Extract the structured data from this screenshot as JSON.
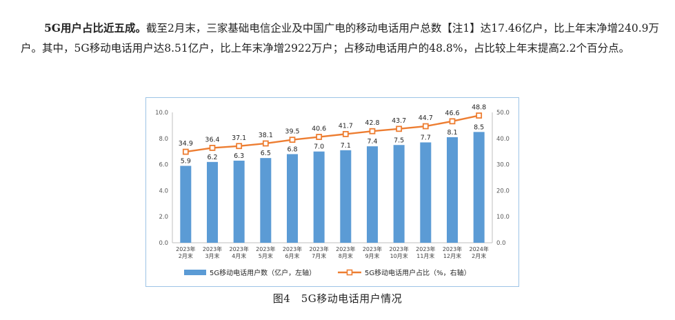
{
  "paragraph": {
    "lead": "5G用户占比近五成。",
    "body": "截至2月末，三家基础电信企业及中国广电的移动电话用户总数【注1】达17.46亿户，比上年末净增240.9万户。其中，5G移动电话用户达8.51亿户，比上年末净增2922万户；占移动电话用户的48.8%，占比较上年末提高2.2个百分点。"
  },
  "caption": "图4　5G移动电话用户情况",
  "colors": {
    "bar": "#5b9bd5",
    "line": "#ed7d31",
    "border": "#9cc3e6"
  },
  "chart_data": {
    "type": "bar",
    "categories": [
      [
        "2023年",
        "2月末"
      ],
      [
        "2023年",
        "3月末"
      ],
      [
        "2023年",
        "4月末"
      ],
      [
        "2023年",
        "5月末"
      ],
      [
        "2023年",
        "6月末"
      ],
      [
        "2023年",
        "7月末"
      ],
      [
        "2023年",
        "8月末"
      ],
      [
        "2023年",
        "9月末"
      ],
      [
        "2023年",
        "10月末"
      ],
      [
        "2023年",
        "11月末"
      ],
      [
        "2023年",
        "12月末"
      ],
      [
        "2024年",
        "2月末"
      ]
    ],
    "series": [
      {
        "name": "5G移动电话用户数（亿户，左轴）",
        "type": "bar",
        "axis": "left",
        "values": [
          5.9,
          6.2,
          6.3,
          6.5,
          6.8,
          7.0,
          7.1,
          7.4,
          7.5,
          7.7,
          8.1,
          8.5
        ],
        "labels": [
          "5.9",
          "6.2",
          "6.3",
          "6.5",
          "6.8",
          "7.0",
          "7.1",
          "7.4",
          "7.5",
          "7.7",
          "8.1",
          "8.5"
        ]
      },
      {
        "name": "5G移动电话用户占比（%，右轴）",
        "type": "line",
        "axis": "right",
        "values": [
          34.9,
          36.4,
          37.1,
          38.1,
          39.5,
          40.6,
          41.7,
          42.8,
          43.7,
          44.7,
          46.6,
          48.8
        ],
        "labels": [
          "34.9",
          "36.4",
          "37.1",
          "38.1",
          "39.5",
          "40.6",
          "41.7",
          "42.8",
          "43.7",
          "44.7",
          "46.6",
          "48.8"
        ]
      }
    ],
    "y_left": {
      "lim": [
        0,
        10
      ],
      "ticks": [
        "0.0",
        "2.0",
        "4.0",
        "6.0",
        "8.0",
        "10.0"
      ]
    },
    "y_right": {
      "lim": [
        0,
        50
      ],
      "ticks": [
        "0.0",
        "10.0",
        "20.0",
        "30.0",
        "40.0",
        "50.0"
      ]
    },
    "grid": false,
    "legend": "bottom"
  }
}
